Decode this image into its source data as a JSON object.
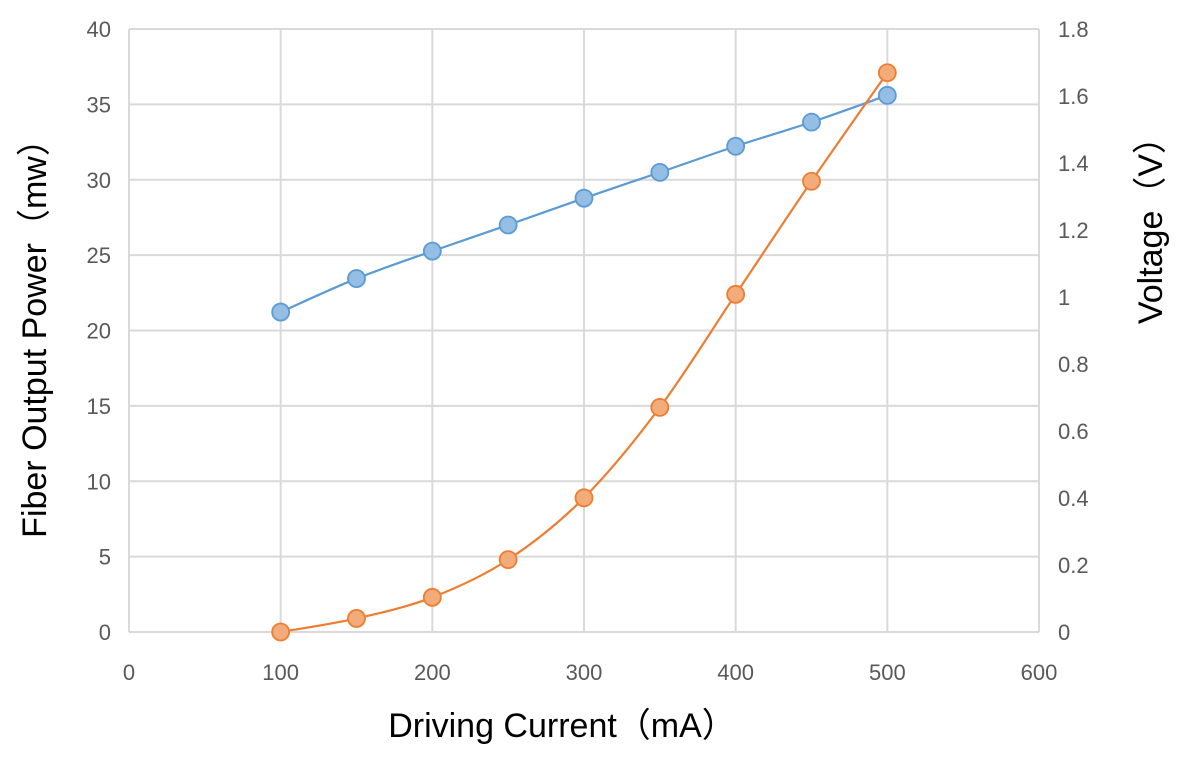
{
  "chart_data": {
    "type": "scatter",
    "xlabel": "Driving Current（mA）",
    "ylabel": "Fiber Output Power（mw）",
    "y2label": "Voltage（V）",
    "xlim": [
      0,
      600
    ],
    "ylim": [
      0,
      40
    ],
    "y2lim": [
      0,
      1.8
    ],
    "x_ticks": [
      "0",
      "100",
      "200",
      "300",
      "400",
      "500",
      "600"
    ],
    "y_ticks": [
      "0",
      "5",
      "10",
      "15",
      "20",
      "25",
      "30",
      "35",
      "40"
    ],
    "y2_ticks": [
      "0",
      "0.2",
      "0.4",
      "0.6",
      "0.8",
      "1",
      "1.2",
      "1.4",
      "1.6",
      "1.8"
    ],
    "grid": true,
    "legend": "none",
    "series": [
      {
        "axis": "y2",
        "color": "#5b9bd5",
        "x": [
          100,
          150,
          200,
          250,
          300,
          350,
          400,
          450,
          500
        ],
        "y": [
          0.955,
          1.055,
          1.137,
          1.215,
          1.295,
          1.372,
          1.45,
          1.522,
          1.602
        ]
      },
      {
        "axis": "y",
        "color": "#ed7d31",
        "x": [
          100,
          150,
          200,
          250,
          300,
          350,
          400,
          450,
          500
        ],
        "y": [
          0.0,
          0.9,
          2.3,
          4.8,
          8.9,
          14.9,
          22.4,
          29.9,
          37.1
        ]
      }
    ]
  }
}
